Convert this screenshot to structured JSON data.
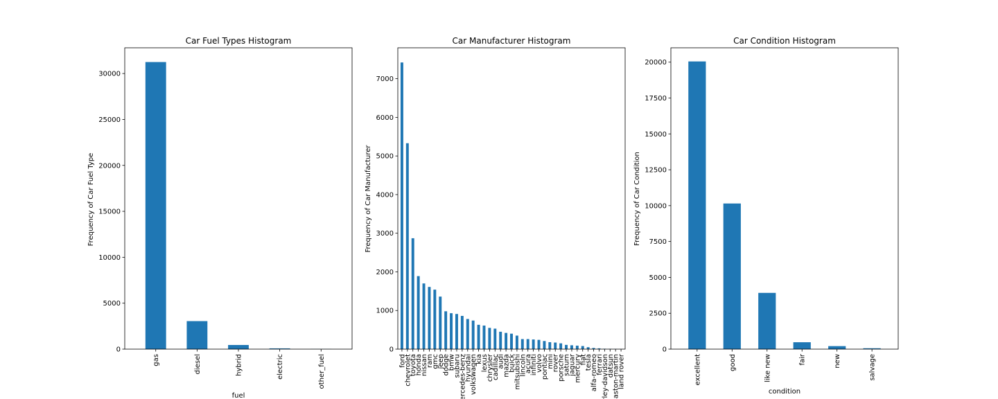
{
  "chart_data": [
    {
      "type": "bar",
      "title": "Car Fuel Types Histogram",
      "xlabel": "fuel",
      "ylabel": "Frequency of Car Fuel Type",
      "categories": [
        "gas",
        "diesel",
        "hybrid",
        "electric",
        "other_fuel"
      ],
      "values": [
        31250,
        3050,
        450,
        80,
        15
      ],
      "ylim": [
        0,
        32800
      ],
      "yticks": [
        0,
        5000,
        10000,
        15000,
        20000,
        25000,
        30000
      ],
      "bar_color": "#1f77b4"
    },
    {
      "type": "bar",
      "title": "Car Manufacturer Histogram",
      "xlabel": "",
      "ylabel": "Frequency of Car Manufacturer",
      "categories": [
        "ford",
        "chevrolet",
        "toyota",
        "honda",
        "nissan",
        "ram",
        "gmc",
        "jeep",
        "dodge",
        "bmw",
        "subaru",
        "mercedes-benz",
        "hyundai",
        "volkswagen",
        "kia",
        "lexus",
        "chrysler",
        "cadillac",
        "audi",
        "mazda",
        "buick",
        "mitsubishi",
        "lincoln",
        "acura",
        "infiniti",
        "volvo",
        "pontiac",
        "mini",
        "rover",
        "porsche",
        "saturn",
        "jaguar",
        "mercury",
        "fiat",
        "tesla",
        "alfa-romeo",
        "ferrari",
        "harley-davidson",
        "datsun",
        "aston-martin",
        "land rover"
      ],
      "values": [
        7420,
        5330,
        2870,
        1890,
        1700,
        1610,
        1540,
        1360,
        980,
        930,
        910,
        860,
        780,
        740,
        630,
        610,
        550,
        530,
        450,
        420,
        400,
        350,
        260,
        260,
        250,
        240,
        210,
        180,
        170,
        150,
        110,
        100,
        90,
        80,
        50,
        30,
        20,
        10,
        8,
        5,
        3
      ],
      "ylim": [
        0,
        7800
      ],
      "yticks": [
        0,
        1000,
        2000,
        3000,
        4000,
        5000,
        6000,
        7000
      ],
      "bar_color": "#1f77b4"
    },
    {
      "type": "bar",
      "title": "Car Condition Histogram",
      "xlabel": "condition",
      "ylabel": "Frequency of Car Condition",
      "categories": [
        "excellent",
        "good",
        "like new",
        "fair",
        "new",
        "salvage"
      ],
      "values": [
        20050,
        10150,
        3920,
        480,
        210,
        60
      ],
      "ylim": [
        0,
        21000
      ],
      "yticks": [
        0,
        2500,
        5000,
        7500,
        10000,
        12500,
        15000,
        17500,
        20000
      ],
      "bar_color": "#1f77b4"
    }
  ]
}
